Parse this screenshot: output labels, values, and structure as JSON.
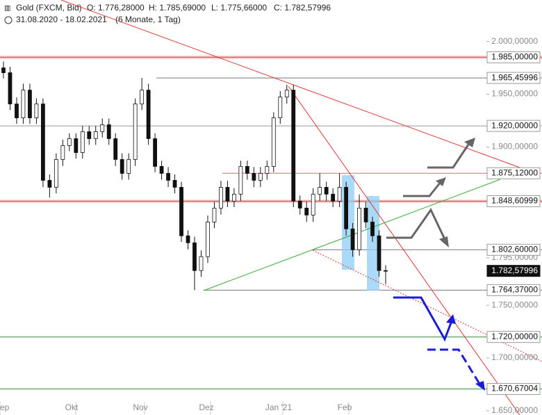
{
  "chart_data": {
    "type": "candlestick",
    "title": "Gold (FXCM, Bid)",
    "ohlc_labels": [
      "O: 1.776,28000",
      "H: 1.785,69000",
      "L: 1.775,66000",
      "C: 1.782,57996"
    ],
    "period": "31.08.2020 - 18.02.2021",
    "period_note": "(6 Monate, 1 Tag)",
    "x_labels": [
      "ep",
      "Okt",
      "Nov",
      "Dez",
      "Jan '21",
      "Feb"
    ],
    "ylim": [
      1646,
      2009
    ],
    "yticks": [
      {
        "value": 2000,
        "label": "2.000,00000"
      },
      {
        "value": 1950,
        "label": "1.950,00000"
      },
      {
        "value": 1900,
        "label": "1.900,00000"
      },
      {
        "value": 1795,
        "label": "1.795,00000"
      },
      {
        "value": 1750,
        "label": "1.750,00000"
      },
      {
        "value": 1700,
        "label": "1.700,00000"
      },
      {
        "value": 1650,
        "label": "1.650,00000"
      }
    ],
    "levels": [
      {
        "value": 1985,
        "label": "1.985,00000",
        "color": "#f2b8b8"
      },
      {
        "value": 1965.45996,
        "label": "1.965,45996",
        "color": "#777777"
      },
      {
        "value": 1920,
        "label": "1.920,00000",
        "color": "#999999"
      },
      {
        "value": 1875.12,
        "label": "1.875,12000",
        "color": "#d46a6a"
      },
      {
        "value": 1848.60999,
        "label": "1.848,60999",
        "color": "#f2b8b8"
      },
      {
        "value": 1802.6,
        "label": "1.802,60000",
        "color": "#777777"
      },
      {
        "value": 1782.57996,
        "label": "1.782,57996",
        "color": "#111111"
      },
      {
        "value": 1764.37,
        "label": "1.764,37000",
        "color": "#777777"
      },
      {
        "value": 1720,
        "label": "1.720,00000",
        "color": "#8fbf8f"
      },
      {
        "value": 1670.67004,
        "label": "1.670,67004",
        "color": "#8fbf8f"
      }
    ],
    "ohlc": [
      [
        1975,
        1981,
        1965,
        1970.4
      ],
      [
        1970.4,
        1976,
        1935,
        1940.8
      ],
      [
        1940.8,
        1947,
        1922,
        1927.6
      ],
      [
        1927.6,
        1960,
        1922,
        1953.9
      ],
      [
        1953.9,
        1960,
        1922,
        1927.6
      ],
      [
        1927.6,
        1946,
        1922,
        1940.8
      ],
      [
        1940.8,
        1946,
        1862,
        1868.4
      ],
      [
        1868.4,
        1874,
        1852,
        1861.8
      ],
      [
        1861.8,
        1894,
        1856,
        1888.2
      ],
      [
        1888.2,
        1907,
        1882,
        1901.3
      ],
      [
        1901.3,
        1913,
        1896,
        1907.9
      ],
      [
        1907.9,
        1913,
        1889,
        1894.7
      ],
      [
        1894.7,
        1920,
        1889,
        1914.5
      ],
      [
        1914.5,
        1920,
        1902,
        1907.9
      ],
      [
        1907.9,
        1920,
        1902,
        1914.5
      ],
      [
        1914.5,
        1927,
        1909,
        1921.1
      ],
      [
        1921.1,
        1927,
        1902,
        1907.9
      ],
      [
        1907.9,
        1913,
        1882,
        1888.2
      ],
      [
        1888.2,
        1894,
        1869,
        1875.0
      ],
      [
        1875.0,
        1894,
        1869,
        1888.2
      ],
      [
        1888.2,
        1946,
        1882,
        1940.8
      ],
      [
        1940.8,
        1965.5,
        1935,
        1953.9
      ],
      [
        1953.9,
        1960,
        1902,
        1907.9
      ],
      [
        1907.9,
        1913,
        1876,
        1881.6
      ],
      [
        1881.6,
        1887,
        1869,
        1875.0
      ],
      [
        1875.0,
        1881,
        1862,
        1868.4
      ],
      [
        1868.4,
        1874,
        1856,
        1861.8
      ],
      [
        1861.8,
        1867,
        1810,
        1815.8
      ],
      [
        1815.8,
        1821,
        1803,
        1809.2
      ],
      [
        1809.2,
        1815,
        1764.4,
        1782.9
      ],
      [
        1782.9,
        1802,
        1777,
        1796.1
      ],
      [
        1796.1,
        1835,
        1790,
        1828.9
      ],
      [
        1828.9,
        1848,
        1823,
        1842.1
      ],
      [
        1842.1,
        1868,
        1836,
        1861.8
      ],
      [
        1861.8,
        1868,
        1843,
        1848.7
      ],
      [
        1848.7,
        1861,
        1843,
        1855.3
      ],
      [
        1855.3,
        1887,
        1849,
        1881.6
      ],
      [
        1881.6,
        1887,
        1869,
        1875.0
      ],
      [
        1875.0,
        1881,
        1862,
        1868.4
      ],
      [
        1868.4,
        1881,
        1862,
        1875.0
      ],
      [
        1875.0,
        1887,
        1869,
        1881.6
      ],
      [
        1881.6,
        1933,
        1876,
        1927.6
      ],
      [
        1927.6,
        1953,
        1922,
        1947.4
      ],
      [
        1947.4,
        1959,
        1941,
        1953.9
      ],
      [
        1953.9,
        1959,
        1843,
        1848.7
      ],
      [
        1848.7,
        1854,
        1836,
        1842.1
      ],
      [
        1842.1,
        1848,
        1829,
        1835.5
      ],
      [
        1835.5,
        1861,
        1829,
        1855.3
      ],
      [
        1855.3,
        1875,
        1849,
        1861.8
      ],
      [
        1861.8,
        1867,
        1849,
        1855.3
      ],
      [
        1855.3,
        1861,
        1843,
        1848.7
      ],
      [
        1848.7,
        1875,
        1843,
        1861.8
      ],
      [
        1861.8,
        1867,
        1816,
        1822.4
      ],
      [
        1822.4,
        1828,
        1796,
        1802.6
      ],
      [
        1802.6,
        1855,
        1797,
        1842.1
      ],
      [
        1842.1,
        1848,
        1823,
        1828.9
      ],
      [
        1828.9,
        1834,
        1810,
        1815.8
      ],
      [
        1815.8,
        1821,
        1777,
        1782.9
      ],
      [
        1782.9,
        1788,
        1770,
        1782.6
      ]
    ],
    "up_color": "#ffffff",
    "down_color": "#111111"
  }
}
